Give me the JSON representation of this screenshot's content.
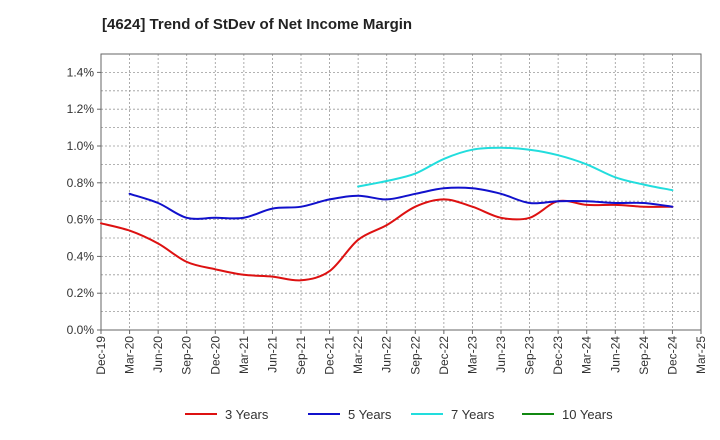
{
  "chart_data": {
    "type": "line",
    "title": "[4624]  Trend of StDev of Net Income Margin",
    "xlabel": "",
    "ylabel": "",
    "x": [
      "Dec-19",
      "Mar-20",
      "Jun-20",
      "Sep-20",
      "Dec-20",
      "Mar-21",
      "Jun-21",
      "Sep-21",
      "Dec-21",
      "Mar-22",
      "Jun-22",
      "Sep-22",
      "Dec-22",
      "Mar-23",
      "Jun-23",
      "Sep-23",
      "Dec-23",
      "Mar-24",
      "Jun-24",
      "Sep-24",
      "Dec-24"
    ],
    "x_ticks": [
      "Dec-19",
      "Mar-20",
      "Jun-20",
      "Sep-20",
      "Dec-20",
      "Mar-21",
      "Jun-21",
      "Sep-21",
      "Dec-21",
      "Mar-22",
      "Jun-22",
      "Sep-22",
      "Dec-22",
      "Mar-23",
      "Jun-23",
      "Sep-23",
      "Dec-23",
      "Mar-24",
      "Jun-24",
      "Sep-24",
      "Dec-24",
      "Mar-25"
    ],
    "y_ticks": [
      "0.0%",
      "0.2%",
      "0.4%",
      "0.6%",
      "0.8%",
      "1.0%",
      "1.2%",
      "1.4%"
    ],
    "ylim": [
      0,
      1.5
    ],
    "y_unit": "%",
    "grid": true,
    "legend_position": "bottom",
    "series": [
      {
        "name": "3 Years",
        "color": "#dd1111",
        "values": [
          0.58,
          0.54,
          0.47,
          0.37,
          0.33,
          0.3,
          0.29,
          0.27,
          0.32,
          0.49,
          0.57,
          0.67,
          0.71,
          0.67,
          0.61,
          0.61,
          0.7,
          0.68,
          0.68,
          0.67,
          0.67
        ]
      },
      {
        "name": "5 Years",
        "color": "#1111cc",
        "values": [
          null,
          0.74,
          0.69,
          0.61,
          0.61,
          0.61,
          0.66,
          0.67,
          0.71,
          0.73,
          0.71,
          0.74,
          0.77,
          0.77,
          0.74,
          0.69,
          0.7,
          0.7,
          0.69,
          0.69,
          0.67
        ]
      },
      {
        "name": "7 Years",
        "color": "#22dddd",
        "values": [
          null,
          null,
          null,
          null,
          null,
          null,
          null,
          null,
          null,
          0.78,
          0.81,
          0.85,
          0.93,
          0.98,
          0.99,
          0.98,
          0.95,
          0.9,
          0.83,
          0.79,
          0.76
        ]
      },
      {
        "name": "10 Years",
        "color": "#118811",
        "values": [
          null,
          null,
          null,
          null,
          null,
          null,
          null,
          null,
          null,
          null,
          null,
          null,
          null,
          null,
          null,
          null,
          null,
          null,
          null,
          null,
          null
        ]
      }
    ]
  }
}
